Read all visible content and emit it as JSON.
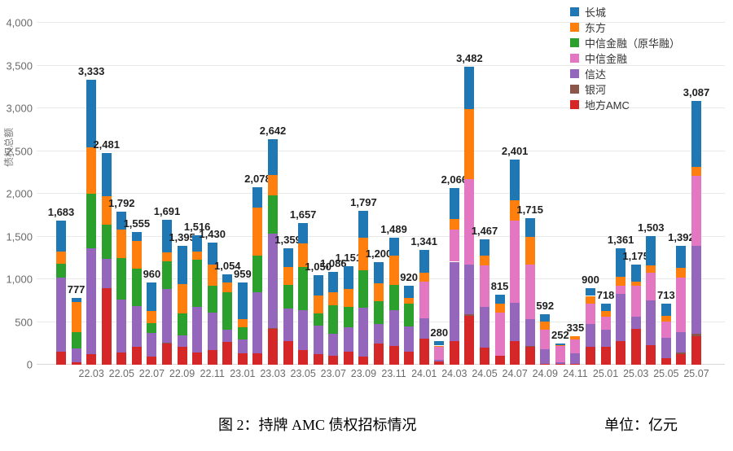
{
  "figure": {
    "caption_left": "图 2：持牌 AMC 债权招标情况",
    "caption_right": "单位：亿元"
  },
  "chart_data": {
    "type": "bar",
    "stacked": true,
    "title": "",
    "xlabel": "",
    "ylabel": "债权总额",
    "ylim": [
      0,
      4000
    ],
    "ytick_interval": 500,
    "ytick_labels": [
      "0",
      "500",
      "1,000",
      "1,500",
      "2,000",
      "2,500",
      "3,000",
      "3,500",
      "4,000"
    ],
    "grid": true,
    "legend_position": "top-right",
    "legend_order": [
      "长城",
      "东方",
      "中信金融（原华融）",
      "中信金融",
      "信达",
      "银河",
      "地方AMC"
    ],
    "categories": [
      "22.01",
      "22.02",
      "22.03",
      "22.04",
      "22.05",
      "22.06",
      "22.07",
      "22.08",
      "22.09",
      "22.10",
      "22.11",
      "22.12",
      "23.01",
      "23.02",
      "23.03",
      "23.04",
      "23.05",
      "23.06",
      "23.07",
      "23.08",
      "23.09",
      "23.10",
      "23.11",
      "23.12",
      "24.01",
      "24.02",
      "24.03",
      "24.04",
      "24.05",
      "24.06",
      "24.07",
      "24.08",
      "24.09",
      "24.10",
      "24.11",
      "24.12",
      "25.01",
      "25.02",
      "25.03",
      "25.04",
      "25.05",
      "25.06",
      "25.07"
    ],
    "xtick_labels_shown": [
      "22.03",
      "22.05",
      "22.07",
      "22.09",
      "22.11",
      "23.01",
      "23.03",
      "23.05",
      "23.07",
      "23.09",
      "23.11",
      "24.01",
      "24.03",
      "24.05",
      "24.07",
      "24.09",
      "24.11",
      "25.01",
      "25.03",
      "25.05",
      "25.07"
    ],
    "totals": [
      1683,
      777,
      3333,
      2481,
      1792,
      1555,
      960,
      1691,
      1395,
      1516,
      1430,
      1054,
      959,
      2078,
      2642,
      1359,
      1657,
      1050,
      1086,
      1151,
      1797,
      1200,
      1489,
      920,
      1341,
      280,
      2066,
      3482,
      1467,
      815,
      2401,
      1715,
      592,
      252,
      335,
      900,
      718,
      1361,
      1175,
      1503,
      713,
      1392,
      3087
    ],
    "series": [
      {
        "name": "地方AMC",
        "color": "#D62728",
        "values": [
          155,
          27,
          121,
          900,
          143,
          207,
          99,
          247,
          212,
          143,
          169,
          271,
          134,
          137,
          421,
          279,
          169,
          125,
          108,
          155,
          91,
          247,
          216,
          156,
          302,
          39,
          276,
          575,
          198,
          109,
          276,
          207,
          13,
          7,
          7,
          212,
          205,
          279,
          423,
          233,
          76,
          122,
          338
        ]
      },
      {
        "name": "银河",
        "color": "#8C564B",
        "values": [
          0,
          0,
          0,
          0,
          0,
          0,
          0,
          10,
          0,
          0,
          0,
          0,
          0,
          0,
          8,
          0,
          0,
          0,
          0,
          0,
          0,
          0,
          0,
          0,
          0,
          0,
          0,
          18,
          0,
          0,
          0,
          16,
          0,
          0,
          0,
          0,
          0,
          0,
          0,
          0,
          0,
          22,
          22
        ]
      },
      {
        "name": "信达",
        "color": "#9467BD",
        "values": [
          860,
          160,
          1239,
          343,
          616,
          479,
          270,
          626,
          133,
          537,
          439,
          136,
          166,
          711,
          1106,
          376,
          470,
          335,
          252,
          284,
          579,
          234,
          422,
          296,
          245,
          23,
          929,
          578,
          482,
          0,
          450,
          307,
          165,
          26,
          128,
          269,
          200,
          549,
          142,
          518,
          239,
          237,
          1032
        ]
      },
      {
        "name": "中信金融",
        "color": "#E377C2",
        "values": [
          0,
          0,
          0,
          0,
          0,
          0,
          0,
          0,
          0,
          0,
          0,
          0,
          0,
          0,
          0,
          0,
          0,
          0,
          0,
          0,
          0,
          0,
          0,
          0,
          424,
          146,
          372,
          999,
          482,
          497,
          962,
          643,
          232,
          182,
          158,
          238,
          156,
          94,
          363,
          330,
          191,
          636,
          822
        ]
      },
      {
        "name": "中信金融（原华融）",
        "color": "#2CA02C",
        "values": [
          165,
          195,
          643,
          399,
          491,
          434,
          121,
          329,
          253,
          553,
          314,
          442,
          134,
          427,
          442,
          282,
          501,
          143,
          332,
          237,
          438,
          266,
          297,
          261,
          0,
          0,
          0,
          0,
          0,
          0,
          0,
          0,
          0,
          0,
          0,
          0,
          0,
          0,
          0,
          0,
          0,
          0,
          0
        ]
      },
      {
        "name": "东方",
        "color": "#FF7F0E",
        "values": [
          147,
          350,
          537,
          333,
          333,
          330,
          143,
          103,
          342,
          88,
          251,
          116,
          96,
          562,
          238,
          204,
          282,
          208,
          158,
          206,
          375,
          203,
          344,
          70,
          110,
          16,
          130,
          817,
          118,
          112,
          233,
          320,
          99,
          12,
          42,
          86,
          71,
          110,
          47,
          79,
          64,
          119,
          99
        ]
      },
      {
        "name": "长城",
        "color": "#1F77B4",
        "values": [
          356,
          45,
          793,
          506,
          209,
          105,
          327,
          376,
          455,
          195,
          257,
          89,
          429,
          241,
          427,
          218,
          235,
          239,
          236,
          269,
          314,
          250,
          210,
          137,
          260,
          56,
          359,
          495,
          187,
          97,
          480,
          222,
          83,
          25,
          0,
          95,
          86,
          329,
          200,
          343,
          143,
          256,
          774
        ]
      }
    ]
  }
}
